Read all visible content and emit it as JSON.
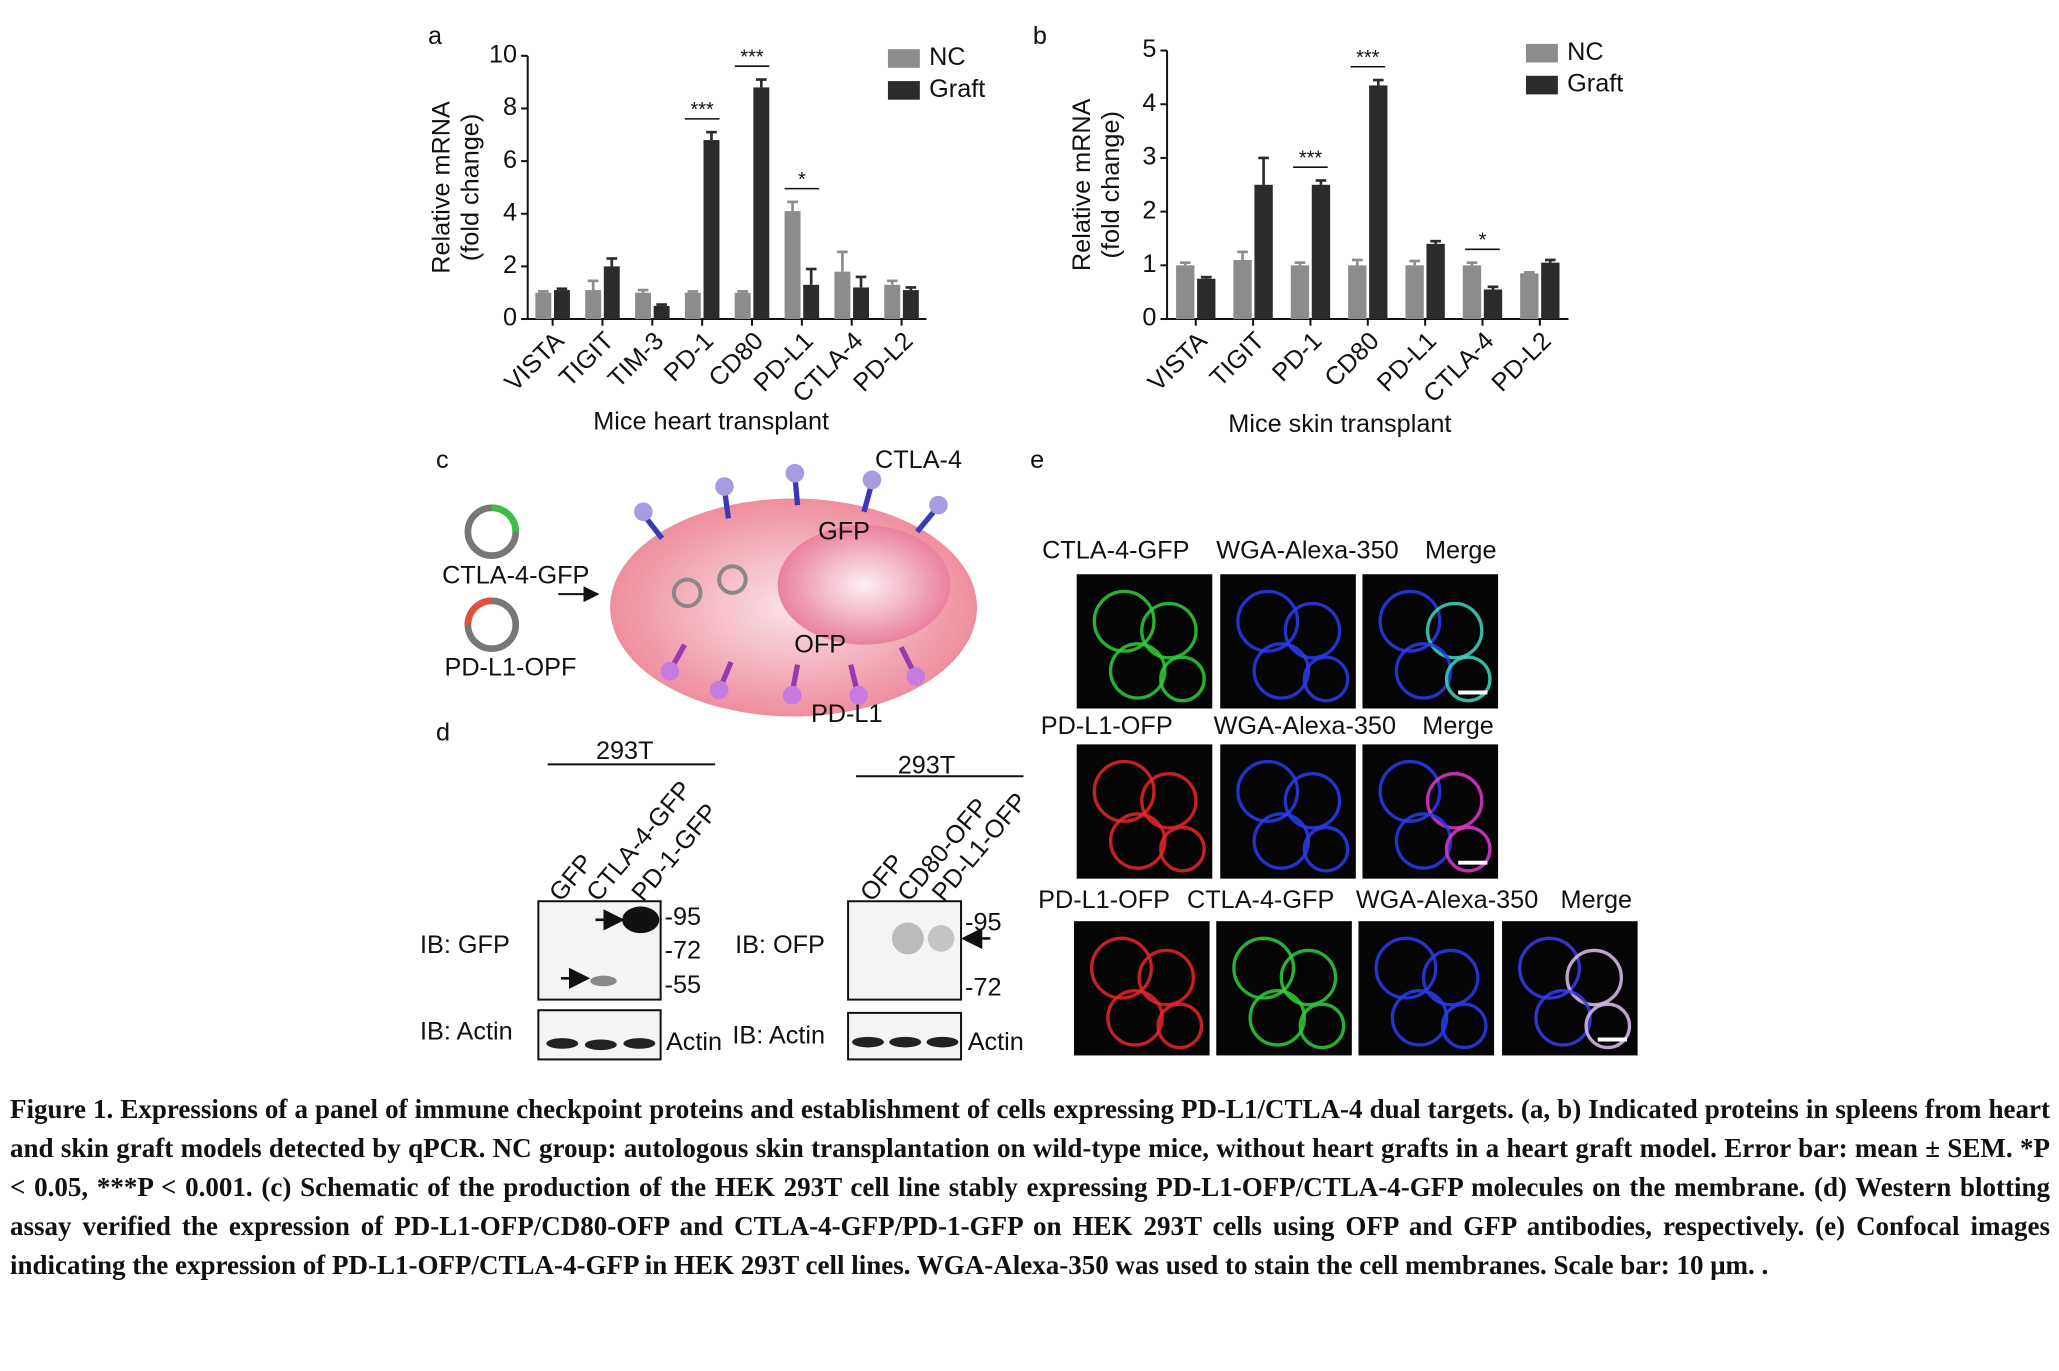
{
  "chart_data": [
    {
      "type": "bar",
      "panel_label": "a",
      "title": "Mice heart transplant",
      "ylabel": [
        "Relative mRNA",
        "(fold change)"
      ],
      "categories": [
        "VISTA",
        "TIGIT",
        "TIM-3",
        "PD-1",
        "CD80",
        "PD-L1",
        "CTLA-4",
        "PD-L2"
      ],
      "series": [
        {
          "name": "NC",
          "color": "#8c8c8c",
          "values": [
            1.0,
            1.1,
            1.0,
            1.0,
            1.0,
            4.1,
            1.8,
            1.3
          ],
          "errors": [
            0.05,
            0.35,
            0.1,
            0.05,
            0.05,
            0.35,
            0.75,
            0.15
          ]
        },
        {
          "name": "Graft",
          "color": "#2b2b2b",
          "values": [
            1.1,
            2.0,
            0.5,
            6.8,
            8.8,
            1.3,
            1.2,
            1.1
          ],
          "errors": [
            0.05,
            0.3,
            0.05,
            0.3,
            0.3,
            0.6,
            0.4,
            0.1
          ]
        }
      ],
      "ylim": [
        0,
        10
      ],
      "yticks": [
        0,
        2,
        4,
        6,
        8,
        10
      ],
      "annotations": [
        {
          "category": "PD-1",
          "text": "***"
        },
        {
          "category": "CD80",
          "text": "***"
        },
        {
          "category": "PD-L1",
          "text": "*"
        }
      ],
      "legend": "upper right"
    },
    {
      "type": "bar",
      "panel_label": "b",
      "title": "Mice skin transplant",
      "ylabel": [
        "Relative mRNA",
        "(fold change)"
      ],
      "categories": [
        "VISTA",
        "TIGIT",
        "PD-1",
        "CD80",
        "PD-L1",
        "CTLA-4",
        "PD-L2"
      ],
      "series": [
        {
          "name": "NC",
          "color": "#8c8c8c",
          "values": [
            1.0,
            1.1,
            1.0,
            1.0,
            1.0,
            1.0,
            0.85
          ],
          "errors": [
            0.05,
            0.15,
            0.05,
            0.1,
            0.08,
            0.05,
            0.02
          ]
        },
        {
          "name": "Graft",
          "color": "#2b2b2b",
          "values": [
            0.75,
            2.5,
            2.5,
            4.35,
            1.4,
            0.55,
            1.05
          ],
          "errors": [
            0.03,
            0.5,
            0.08,
            0.1,
            0.05,
            0.05,
            0.05
          ]
        }
      ],
      "ylim": [
        0,
        5
      ],
      "yticks": [
        0,
        1,
        2,
        3,
        4,
        5
      ],
      "annotations": [
        {
          "category": "PD-1",
          "text": "***"
        },
        {
          "category": "CD80",
          "text": "***"
        },
        {
          "category": "CTLA-4",
          "text": "*"
        }
      ],
      "legend": "upper right"
    }
  ],
  "diagram": {
    "panel_label": "c",
    "plasmids": [
      "CTLA-4-GFP",
      "PD-L1-OPF"
    ],
    "labels": {
      "top": "CTLA-4",
      "gfp": "GFP",
      "ofp": "OFP",
      "bottom": "PD-L1"
    }
  },
  "western_blot": {
    "panel_label": "d",
    "left": {
      "cell_line": "293T",
      "lanes": [
        "GFP",
        "CTLA-4-GFP",
        "PD-1-GFP"
      ],
      "ib_main": "IB:  GFP",
      "ib_actin": "IB:  Actin",
      "markers": [
        "-95",
        "-72",
        "-55"
      ],
      "actin": "Actin"
    },
    "right": {
      "cell_line": "293T",
      "lanes": [
        "OFP",
        "CD80-OFP",
        "PD-L1-OFP"
      ],
      "ib_main": "IB:  OFP",
      "ib_actin": "IB:  Actin",
      "markers": [
        "-95",
        "-72"
      ],
      "actin": "Actin"
    }
  },
  "confocal": {
    "panel_label": "e",
    "rows": [
      [
        "CTLA-4-GFP",
        "WGA-Alexa-350",
        "Merge"
      ],
      [
        "PD-L1-OFP",
        "WGA-Alexa-350",
        "Merge"
      ],
      [
        "PD-L1-OFP",
        "CTLA-4-GFP",
        "WGA-Alexa-350",
        "Merge"
      ]
    ]
  },
  "caption": "Figure 1. Expressions of a panel of immune checkpoint proteins and establishment of cells expressing PD-L1/CTLA-4 dual targets. (a, b) Indicated proteins in spleens from heart and skin graft models detected by qPCR. NC group: autologous skin transplantation on wild-type mice, without heart grafts in a heart graft model. Error bar: mean ± SEM. *P < 0.05, ***P < 0.001. (c) Schematic of the production of the HEK 293T cell line stably expressing PD-L1-OFP/CTLA-4-GFP molecules on the membrane. (d) Western blotting assay verified the expression of PD-L1-OFP/CD80-OFP and CTLA-4-GFP/PD-1-GFP on HEK 293T cells using OFP and GFP antibodies, respectively. (e) Confocal images indicating the expression of PD-L1-OFP/CTLA-4-GFP in HEK 293T cell lines. WGA-Alexa-350 was used to stain the cell membranes. Scale bar: 10 μm. ."
}
